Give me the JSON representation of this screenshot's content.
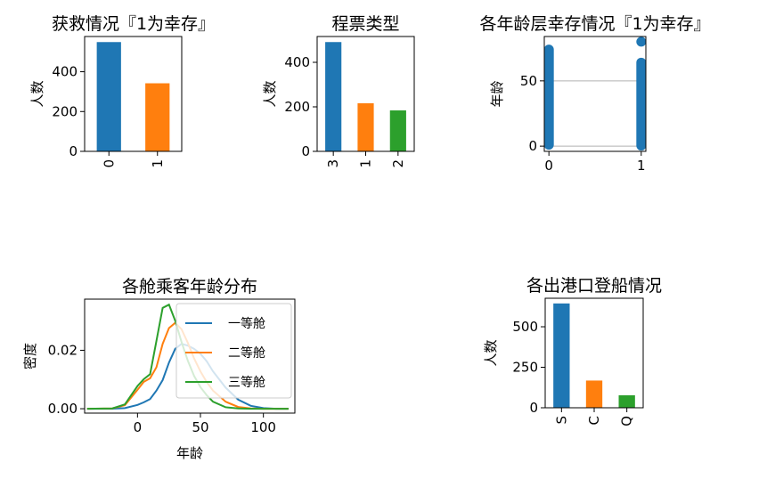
{
  "chart_data": [
    {
      "id": "survived",
      "type": "bar",
      "title": "获救情况『1为幸存』",
      "ylabel": "人数",
      "categories": [
        "0",
        "1"
      ],
      "values": [
        549,
        342
      ],
      "ylim": [
        0,
        577
      ],
      "yticks": [
        0,
        200,
        400
      ],
      "colors": [
        "#1f77b4",
        "#ff7f0e"
      ]
    },
    {
      "id": "pclass",
      "type": "bar",
      "title": "程票类型",
      "ylabel": "人数",
      "categories": [
        "3",
        "1",
        "2"
      ],
      "values": [
        491,
        216,
        184
      ],
      "ylim": [
        0,
        516
      ],
      "yticks": [
        0,
        200,
        400
      ],
      "colors": [
        "#1f77b4",
        "#ff7f0e",
        "#2ca02c"
      ]
    },
    {
      "id": "age_survival",
      "type": "scatter",
      "title": "各年龄层幸存情况『1为幸存』",
      "ylabel": "年龄",
      "xticks": [
        0,
        1
      ],
      "yticks": [
        0,
        50
      ],
      "xlim": [
        -0.05,
        1.05
      ],
      "ylim": [
        -4,
        84
      ],
      "grid": true,
      "color": "#1f77b4",
      "series": [
        {
          "x": 0,
          "y_min": 1,
          "y_max": 74
        },
        {
          "x": 1,
          "y_min": 0.4,
          "y_max": 64
        },
        {
          "x": 1,
          "y": 80
        }
      ]
    },
    {
      "id": "age_kde",
      "type": "line",
      "title": "各舱乘客年龄分布",
      "xlabel": "年龄",
      "ylabel": "密度",
      "xlim": [
        -42,
        125
      ],
      "ylim": [
        -0.0015,
        0.0375
      ],
      "xticks": [
        0,
        50,
        100
      ],
      "yticks": [
        0.0,
        0.02
      ],
      "ytick_labels": [
        "0.00",
        "0.02"
      ],
      "legend": "upper right",
      "series": [
        {
          "name": "一等舱",
          "color": "#1f77b4",
          "x": [
            -40,
            -20,
            -10,
            0,
            5,
            10,
            15,
            20,
            25,
            30,
            35,
            40,
            45,
            50,
            55,
            60,
            70,
            80,
            90,
            100,
            110,
            120
          ],
          "y": [
            0,
            0,
            0.0002,
            0.0013,
            0.0022,
            0.0033,
            0.0062,
            0.0098,
            0.0158,
            0.0205,
            0.0222,
            0.0216,
            0.0205,
            0.0188,
            0.0162,
            0.0128,
            0.0072,
            0.0031,
            0.001,
            0.0002,
            0,
            0
          ]
        },
        {
          "name": "二等舱",
          "color": "#ff7f0e",
          "x": [
            -40,
            -20,
            -10,
            0,
            5,
            10,
            15,
            20,
            25,
            30,
            35,
            40,
            45,
            50,
            55,
            60,
            70,
            80,
            90,
            100,
            110,
            120
          ],
          "y": [
            0,
            0.0001,
            0.0012,
            0.0065,
            0.0092,
            0.0104,
            0.0142,
            0.0222,
            0.0276,
            0.0294,
            0.0272,
            0.0225,
            0.0172,
            0.0128,
            0.0091,
            0.0062,
            0.0024,
            0.0006,
            0.0001,
            0,
            0,
            0
          ]
        },
        {
          "name": "三等舱",
          "color": "#2ca02c",
          "x": [
            -40,
            -20,
            -10,
            0,
            5,
            10,
            15,
            20,
            25,
            30,
            35,
            40,
            45,
            50,
            55,
            60,
            70,
            80,
            90,
            100,
            110,
            120
          ],
          "y": [
            0,
            0.0001,
            0.0015,
            0.0078,
            0.0101,
            0.0118,
            0.0232,
            0.0345,
            0.0356,
            0.0301,
            0.0228,
            0.0164,
            0.0112,
            0.0074,
            0.0046,
            0.0024,
            0.0005,
            0.0001,
            0,
            0,
            0,
            0
          ]
        }
      ]
    },
    {
      "id": "embarked",
      "type": "bar",
      "title": "各出港口登船情况",
      "ylabel": "人数",
      "categories": [
        "S",
        "C",
        "Q"
      ],
      "values": [
        644,
        168,
        77
      ],
      "ylim": [
        0,
        676
      ],
      "yticks": [
        0,
        250,
        500
      ],
      "colors": [
        "#1f77b4",
        "#ff7f0e",
        "#2ca02c"
      ]
    }
  ]
}
